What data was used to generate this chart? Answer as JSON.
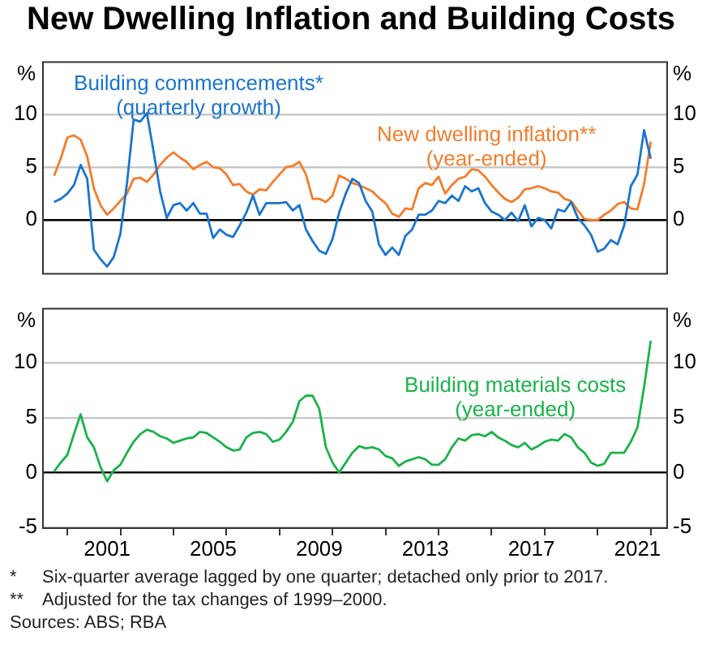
{
  "chart_data": [
    {
      "type": "line",
      "title": "New Dwelling Inflation and Building Costs",
      "ylabel": "%",
      "y2label": "%",
      "xlim": [
        1999.05,
        2022.65
      ],
      "ylim": [
        -5,
        15
      ],
      "yticks": [
        0,
        5,
        10
      ],
      "y2lim": [
        -5,
        15
      ],
      "y2ticks": [
        0,
        5,
        10
      ],
      "tick_labels": "y",
      "grid": "y",
      "x": [
        1999.5,
        1999.75,
        2000,
        2000.25,
        2000.5,
        2000.75,
        2001,
        2001.25,
        2001.5,
        2001.75,
        2002,
        2002.25,
        2002.5,
        2002.75,
        2003,
        2003.25,
        2003.5,
        2003.75,
        2004,
        2004.25,
        2004.5,
        2004.75,
        2005,
        2005.25,
        2005.5,
        2005.75,
        2006,
        2006.25,
        2006.5,
        2006.75,
        2007,
        2007.25,
        2007.5,
        2007.75,
        2008,
        2008.25,
        2008.5,
        2008.75,
        2009,
        2009.25,
        2009.5,
        2009.75,
        2010,
        2010.25,
        2010.5,
        2010.75,
        2011,
        2011.25,
        2011.5,
        2011.75,
        2012,
        2012.25,
        2012.5,
        2012.75,
        2013,
        2013.25,
        2013.5,
        2013.75,
        2014,
        2014.25,
        2014.5,
        2014.75,
        2015,
        2015.25,
        2015.5,
        2015.75,
        2016,
        2016.25,
        2016.5,
        2016.75,
        2017,
        2017.25,
        2017.5,
        2017.75,
        2018,
        2018.25,
        2018.5,
        2018.75,
        2019,
        2019.25,
        2019.5,
        2019.75,
        2020,
        2020.25,
        2020.5,
        2020.75,
        2021,
        2021.25,
        2021.5,
        2021.75,
        2022
      ],
      "ref_lines": [
        {
          "axis": "y",
          "value": 0,
          "color": "#000000"
        }
      ],
      "series": [
        {
          "name": "Building commencements*\n(quarterly growth)",
          "color": "#1a75cf",
          "values": [
            1.7,
            2.0,
            2.5,
            3.3,
            5.2,
            3.9,
            -2.8,
            -3.7,
            -4.4,
            -3.5,
            -1.3,
            3.5,
            9.5,
            9.3,
            10.1,
            6.5,
            2.7,
            0.2,
            1.4,
            1.6,
            0.9,
            1.6,
            0.6,
            0.6,
            -1.7,
            -0.9,
            -1.4,
            -1.6,
            -0.5,
            0.7,
            2.3,
            0.5,
            1.6,
            1.6,
            1.6,
            1.7,
            0.9,
            1.4,
            -0.9,
            -2.0,
            -2.9,
            -3.2,
            -1.8,
            0.7,
            2.5,
            3.9,
            3.5,
            1.8,
            0.8,
            -2.3,
            -3.3,
            -2.6,
            -3.3,
            -1.5,
            -0.9,
            0.5,
            0.5,
            0.9,
            1.8,
            1.6,
            2.3,
            1.8,
            3.2,
            2.7,
            3.0,
            1.6,
            0.8,
            0.5,
            0.0,
            0.7,
            -0.1,
            1.4,
            -0.6,
            0.2,
            0.0,
            -0.8,
            1.0,
            0.8,
            1.7,
            0.2,
            -0.5,
            -1.4,
            -3.0,
            -2.7,
            -1.9,
            -2.3,
            -0.5,
            3.2,
            4.3,
            8.5,
            5.8
          ]
        },
        {
          "name": "New dwelling inflation**\n(year-ended)",
          "color": "#f57c2b",
          "values": [
            4.2,
            5.8,
            7.8,
            8.0,
            7.6,
            6.0,
            3.0,
            1.4,
            0.5,
            1.1,
            1.8,
            2.5,
            3.9,
            4.0,
            3.6,
            4.3,
            5.2,
            5.9,
            6.4,
            5.9,
            5.5,
            4.8,
            5.2,
            5.5,
            5.0,
            4.9,
            4.3,
            3.3,
            3.4,
            2.7,
            2.4,
            2.9,
            2.8,
            3.6,
            4.3,
            5.0,
            5.1,
            5.5,
            4.3,
            2.0,
            2.0,
            1.7,
            2.3,
            4.2,
            3.9,
            3.5,
            3.3,
            3.0,
            2.7,
            2.1,
            1.6,
            0.6,
            0.3,
            1.1,
            1.0,
            3.0,
            3.5,
            3.3,
            4.1,
            2.5,
            3.3,
            3.9,
            4.1,
            4.8,
            4.7,
            4.1,
            3.3,
            2.6,
            2.0,
            1.7,
            2.1,
            2.9,
            3.0,
            3.2,
            3.0,
            2.7,
            2.6,
            2.0,
            1.8,
            0.9,
            0.1,
            0.0,
            0.0,
            0.5,
            0.9,
            1.5,
            1.7,
            1.1,
            1.0,
            3.4,
            7.4
          ]
        }
      ]
    },
    {
      "type": "line",
      "ylabel": "%",
      "y2label": "%",
      "xlim": [
        1999.05,
        2022.65
      ],
      "ylim": [
        -5,
        15
      ],
      "yticks": [
        -5,
        0,
        5,
        10
      ],
      "y2lim": [
        -5,
        15
      ],
      "y2ticks": [
        -5,
        0,
        5,
        10
      ],
      "grid": "y",
      "xticks": [
        {
          "value": 2000,
          "label": null
        },
        {
          "value": 2001.5,
          "label": "2001"
        },
        {
          "value": 2002,
          "label": null
        },
        {
          "value": 2004,
          "label": null
        },
        {
          "value": 2005.5,
          "label": "2005"
        },
        {
          "value": 2006,
          "label": null
        },
        {
          "value": 2008,
          "label": null
        },
        {
          "value": 2009.5,
          "label": "2009"
        },
        {
          "value": 2010,
          "label": null
        },
        {
          "value": 2012,
          "label": null
        },
        {
          "value": 2013.5,
          "label": "2013"
        },
        {
          "value": 2014,
          "label": null
        },
        {
          "value": 2016,
          "label": null
        },
        {
          "value": 2017.5,
          "label": "2017"
        },
        {
          "value": 2018,
          "label": null
        },
        {
          "value": 2020,
          "label": null
        },
        {
          "value": 2021.5,
          "label": "2021"
        },
        {
          "value": 2022,
          "label": null
        }
      ],
      "x": [
        1999.5,
        1999.75,
        2000,
        2000.25,
        2000.5,
        2000.75,
        2001,
        2001.25,
        2001.5,
        2001.75,
        2002,
        2002.25,
        2002.5,
        2002.75,
        2003,
        2003.25,
        2003.5,
        2003.75,
        2004,
        2004.25,
        2004.5,
        2004.75,
        2005,
        2005.25,
        2005.5,
        2005.75,
        2006,
        2006.25,
        2006.5,
        2006.75,
        2007,
        2007.25,
        2007.5,
        2007.75,
        2008,
        2008.25,
        2008.5,
        2008.75,
        2009,
        2009.25,
        2009.5,
        2009.75,
        2010,
        2010.25,
        2010.5,
        2010.75,
        2011,
        2011.25,
        2011.5,
        2011.75,
        2012,
        2012.25,
        2012.5,
        2012.75,
        2013,
        2013.25,
        2013.5,
        2013.75,
        2014,
        2014.25,
        2014.5,
        2014.75,
        2015,
        2015.25,
        2015.5,
        2015.75,
        2016,
        2016.25,
        2016.5,
        2016.75,
        2017,
        2017.25,
        2017.5,
        2017.75,
        2018,
        2018.25,
        2018.5,
        2018.75,
        2019,
        2019.25,
        2019.5,
        2019.75,
        2020,
        2020.25,
        2020.5,
        2020.75,
        2021,
        2021.25,
        2021.5,
        2021.75,
        2022
      ],
      "ref_lines": [
        {
          "axis": "y",
          "value": 0,
          "color": "#000000"
        }
      ],
      "series": [
        {
          "name": "Building materials costs\n(year-ended)",
          "color": "#1ab34a",
          "values": [
            0.1,
            0.9,
            1.6,
            3.5,
            5.3,
            3.2,
            2.3,
            0.5,
            -0.8,
            0.2,
            0.7,
            1.8,
            2.8,
            3.5,
            3.9,
            3.7,
            3.3,
            3.1,
            2.7,
            2.9,
            3.1,
            3.2,
            3.7,
            3.6,
            3.2,
            2.8,
            2.3,
            2.0,
            2.1,
            3.2,
            3.6,
            3.7,
            3.5,
            2.8,
            3.0,
            3.7,
            4.6,
            6.5,
            7.0,
            7.0,
            5.8,
            2.3,
            0.9,
            0.0,
            0.9,
            1.8,
            2.4,
            2.2,
            2.3,
            2.1,
            1.5,
            1.3,
            0.6,
            1.0,
            1.2,
            1.4,
            1.2,
            0.7,
            0.7,
            1.2,
            2.3,
            3.1,
            2.9,
            3.4,
            3.5,
            3.3,
            3.7,
            3.2,
            2.9,
            2.5,
            2.3,
            2.7,
            2.1,
            2.4,
            2.8,
            3.0,
            2.9,
            3.5,
            3.2,
            2.3,
            1.8,
            0.9,
            0.6,
            0.8,
            1.8,
            1.8,
            1.8,
            2.8,
            4.1,
            7.8,
            12.0
          ]
        }
      ],
      "annotations": [
        "* Six-quarter average lagged by one quarter; detached only prior to 2017.",
        "** Adjusted for the tax changes of 1999–2000.",
        "Sources: ABS; RBA"
      ]
    }
  ]
}
